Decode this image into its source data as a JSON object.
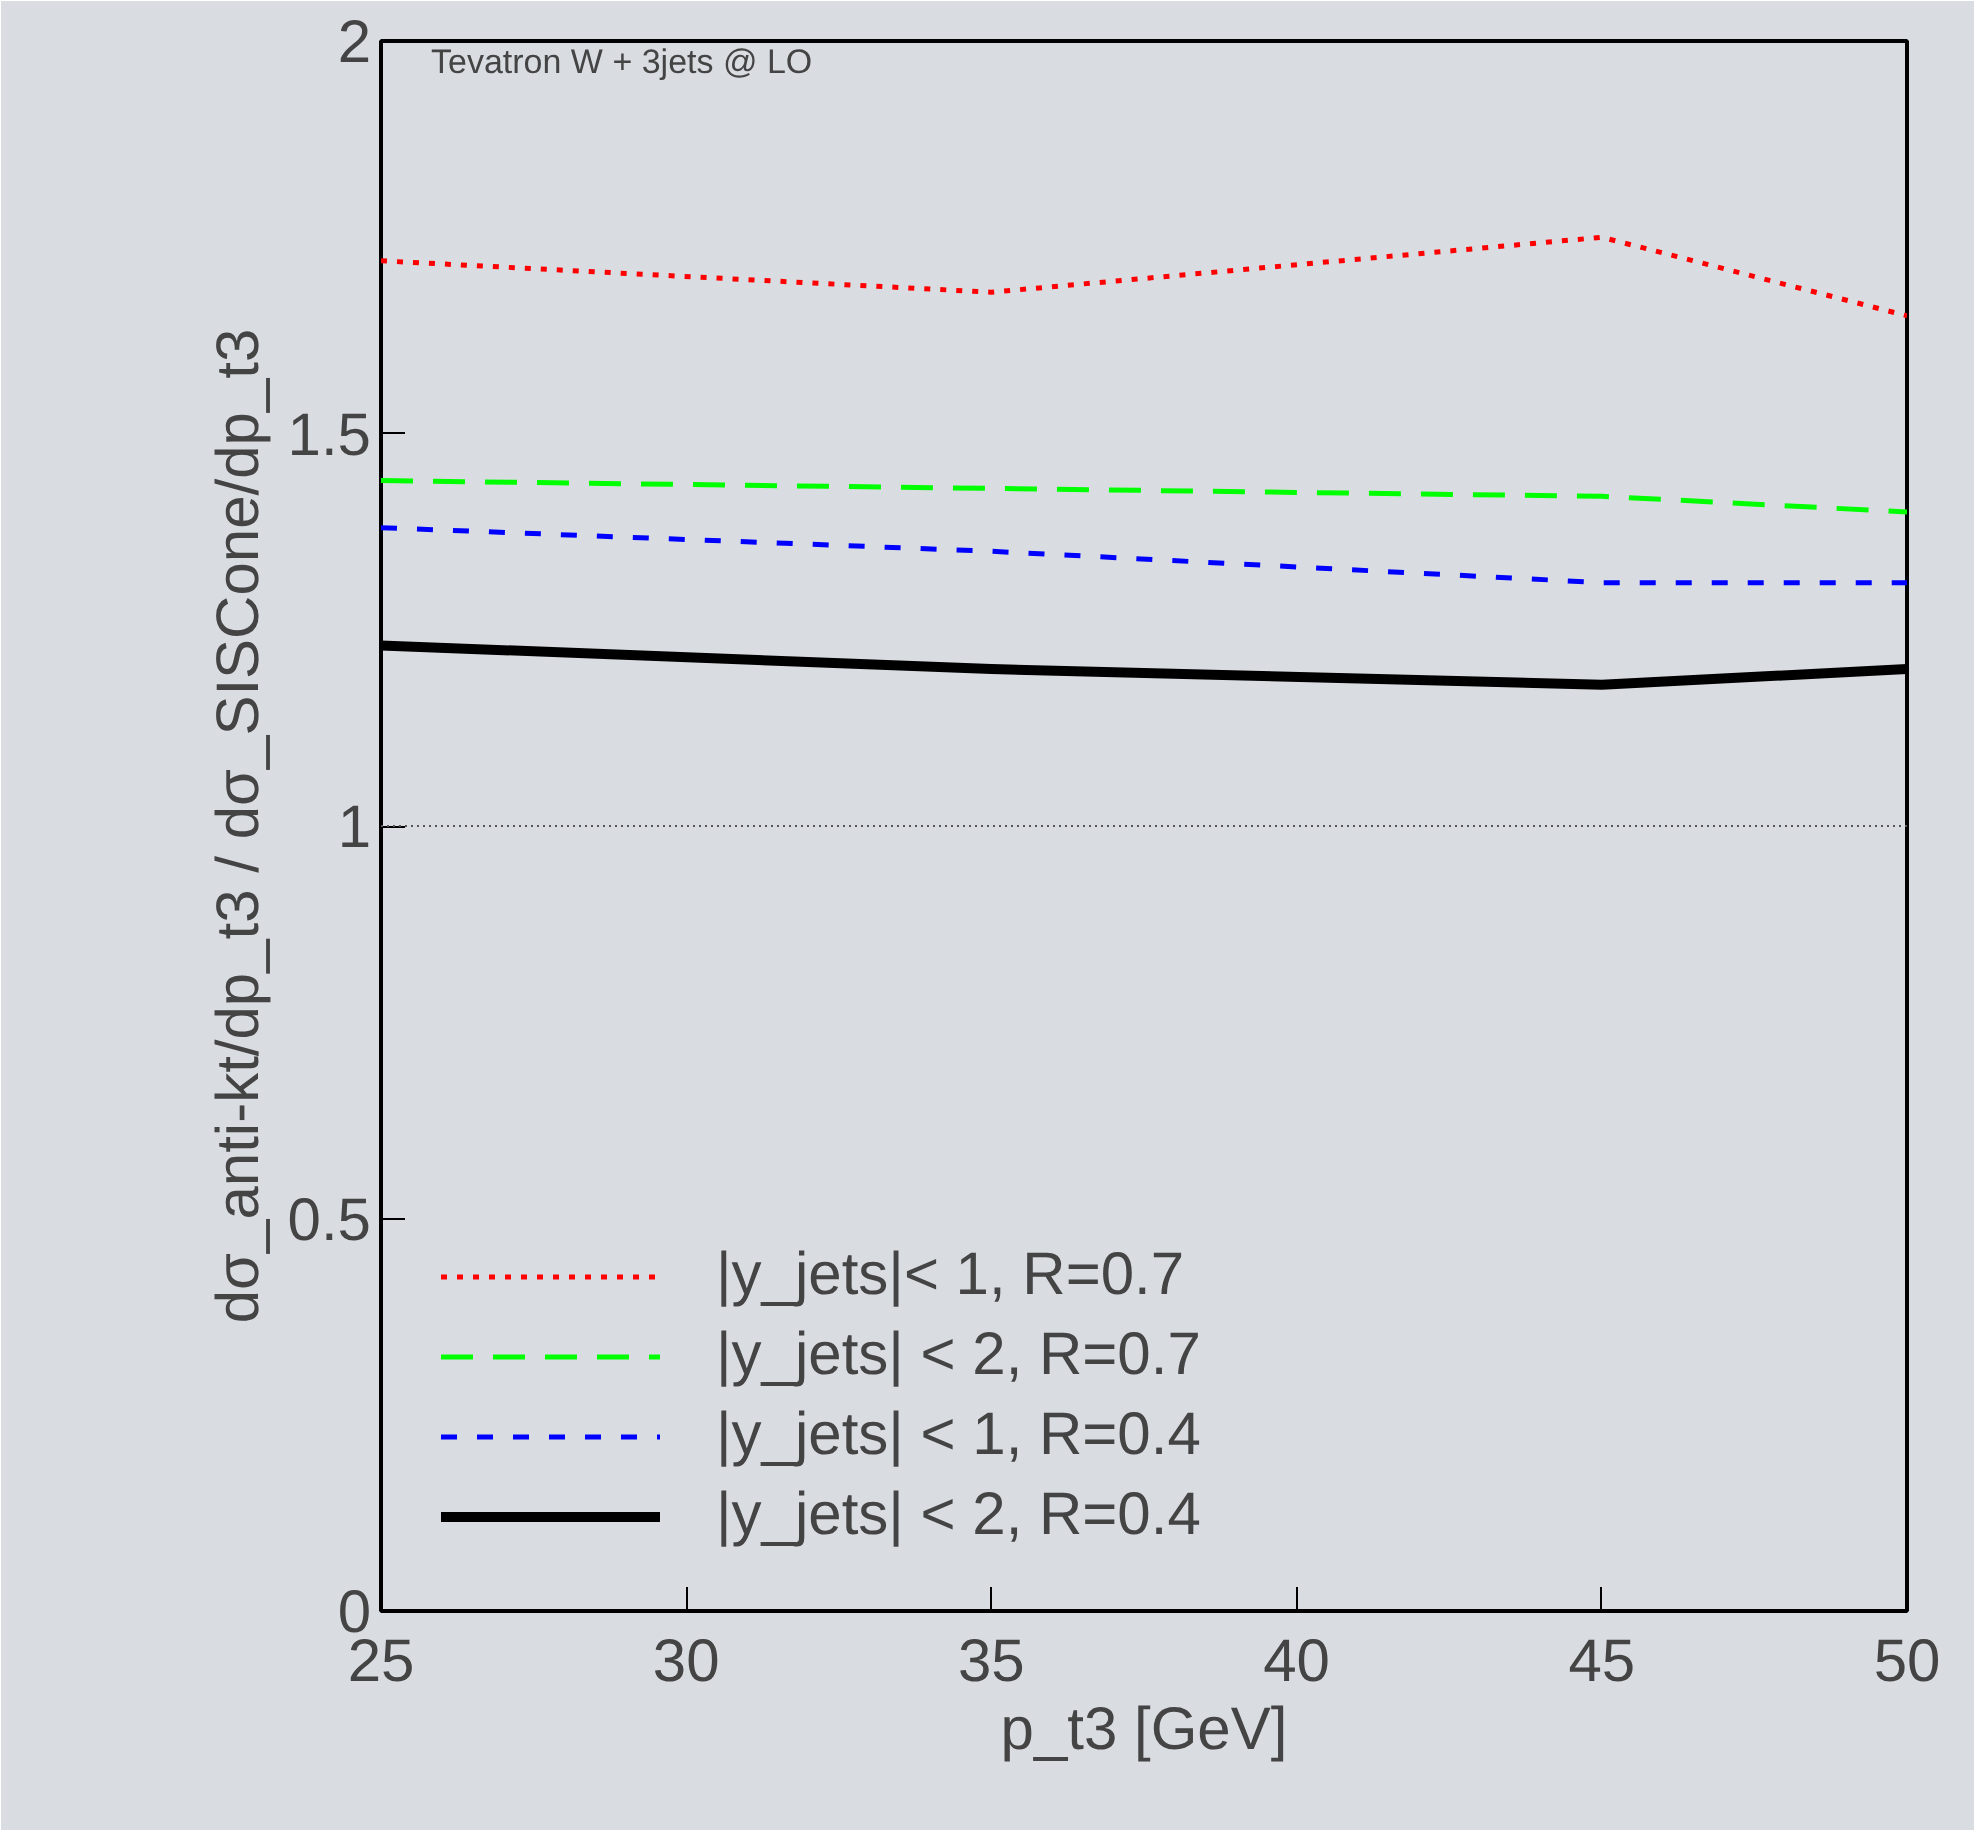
{
  "chart_data": {
    "type": "line",
    "title": "Tevatron W + 3jets @ LO",
    "xlabel": "p_t3 [GeV]",
    "ylabel": "dσ_anti-kt/dp_t3 / dσ_SISCone/dp_t3",
    "x": [
      25,
      35,
      45,
      50
    ],
    "series": [
      {
        "name": "|y_jets|< 1, R=0.7",
        "color": "#ff0000",
        "line_style": "dotted",
        "values": [
          1.72,
          1.68,
          1.75,
          1.65
        ]
      },
      {
        "name": "|y_jets| < 2, R=0.7",
        "color": "#00ff00",
        "line_style": "dashed",
        "values": [
          1.44,
          1.43,
          1.42,
          1.4
        ]
      },
      {
        "name": "|y_jets| < 1, R=0.4",
        "color": "#0000ff",
        "line_style": "dashed",
        "values": [
          1.38,
          1.35,
          1.31,
          1.31
        ]
      },
      {
        "name": "|y_jets| < 2, R=0.4",
        "color": "#000000",
        "line_style": "solid",
        "values": [
          1.23,
          1.2,
          1.18,
          1.2
        ]
      }
    ],
    "xlim": [
      25,
      50
    ],
    "ylim": [
      0,
      2
    ],
    "xticks": [
      25,
      30,
      35,
      40,
      45,
      50
    ],
    "yticks": [
      0,
      0.5,
      1,
      1.5,
      2
    ],
    "ref_lines": [
      {
        "axis": "y",
        "value": 1,
        "color": "#555555",
        "line_style": "dotted"
      }
    ],
    "grid": false,
    "legend": "bottom left",
    "marker": "none"
  }
}
